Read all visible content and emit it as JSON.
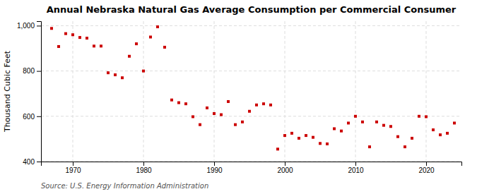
{
  "chart_data": {
    "type": "scatter",
    "title": "Annual Nebraska Natural Gas Average Consumption per Commercial Consumer",
    "ylabel": "Thousand Cubic Feet",
    "source": "Source: U.S. Energy Information Administration",
    "color": "#cc0000",
    "marker": "square",
    "grid": true,
    "xlim": [
      1965.5,
      2025
    ],
    "ylim": [
      400,
      1020
    ],
    "xticks": [
      1970,
      1980,
      1990,
      2000,
      2010,
      2020
    ],
    "yticks": [
      400,
      600,
      800,
      {
        "value": 1000,
        "label": "1,000"
      }
    ],
    "x": [
      1967,
      1968,
      1969,
      1970,
      1971,
      1972,
      1973,
      1974,
      1975,
      1976,
      1977,
      1978,
      1979,
      1980,
      1981,
      1982,
      1983,
      1984,
      1985,
      1986,
      1987,
      1988,
      1989,
      1990,
      1991,
      1992,
      1993,
      1994,
      1995,
      1996,
      1997,
      1998,
      1999,
      2000,
      2001,
      2002,
      2003,
      2004,
      2005,
      2006,
      2007,
      2008,
      2009,
      2010,
      2011,
      2012,
      2013,
      2014,
      2015,
      2016,
      2017,
      2018,
      2019,
      2020,
      2021,
      2022,
      2023,
      2024
    ],
    "values": [
      988,
      908,
      965,
      960,
      948,
      945,
      910,
      910,
      792,
      783,
      770,
      865,
      920,
      800,
      950,
      995,
      905,
      672,
      660,
      655,
      598,
      563,
      637,
      612,
      607,
      665,
      563,
      575,
      622,
      650,
      655,
      650,
      455,
      515,
      525,
      503,
      515,
      507,
      480,
      478,
      545,
      535,
      570,
      600,
      575,
      465,
      575,
      560,
      555,
      510,
      465,
      503,
      600,
      598,
      540,
      518,
      525,
      570
    ]
  }
}
